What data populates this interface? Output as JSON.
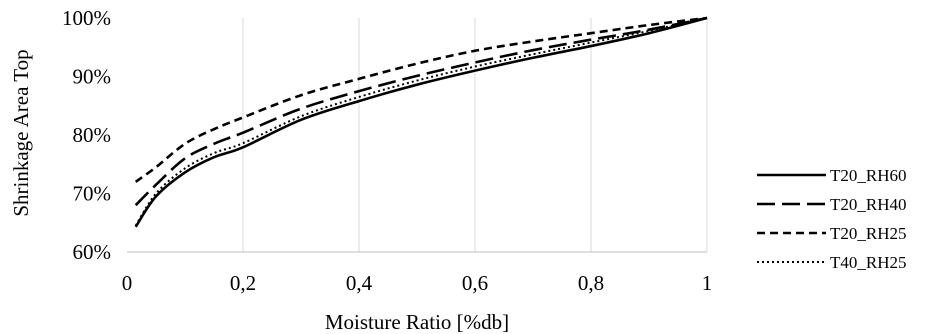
{
  "chart_data": {
    "type": "line",
    "title": "",
    "xlabel": "Moisture Ratio [%db]",
    "ylabel": "Shrinkage Area Top",
    "xlim": [
      0,
      1
    ],
    "ylim": [
      0.6,
      1.0
    ],
    "x_ticks": [
      {
        "value": 0,
        "label": "0"
      },
      {
        "value": 0.2,
        "label": "0,2"
      },
      {
        "value": 0.4,
        "label": "0,4"
      },
      {
        "value": 0.6,
        "label": "0,6"
      },
      {
        "value": 0.8,
        "label": "0,8"
      },
      {
        "value": 1,
        "label": "1"
      }
    ],
    "y_ticks": [
      {
        "value": 0.6,
        "label": "60%"
      },
      {
        "value": 0.7,
        "label": "70%"
      },
      {
        "value": 0.8,
        "label": "80%"
      },
      {
        "value": 0.9,
        "label": "90%"
      },
      {
        "value": 1.0,
        "label": "100%"
      }
    ],
    "grid": {
      "vertical": true,
      "horizontal": false
    },
    "legend_position": "right",
    "series": [
      {
        "name": "T20_RH60",
        "style": "solid",
        "color": "#000000",
        "x": [
          0.015,
          0.05,
          0.1,
          0.15,
          0.2,
          0.3,
          0.4,
          0.5,
          0.6,
          0.7,
          0.8,
          0.9,
          1.0
        ],
        "y": [
          0.643,
          0.695,
          0.736,
          0.762,
          0.779,
          0.826,
          0.858,
          0.886,
          0.91,
          0.932,
          0.952,
          0.974,
          1.0
        ]
      },
      {
        "name": "T20_RH40",
        "style": "longdash",
        "color": "#000000",
        "x": [
          0.015,
          0.05,
          0.1,
          0.15,
          0.2,
          0.3,
          0.4,
          0.5,
          0.6,
          0.7,
          0.8,
          0.9,
          1.0
        ],
        "y": [
          0.68,
          0.715,
          0.76,
          0.785,
          0.804,
          0.845,
          0.875,
          0.901,
          0.924,
          0.945,
          0.963,
          0.98,
          1.0
        ]
      },
      {
        "name": "T20_RH25",
        "style": "shortdash",
        "color": "#000000",
        "x": [
          0.015,
          0.05,
          0.1,
          0.15,
          0.2,
          0.3,
          0.4,
          0.5,
          0.6,
          0.7,
          0.8,
          0.9,
          1.0
        ],
        "y": [
          0.72,
          0.745,
          0.785,
          0.81,
          0.83,
          0.868,
          0.896,
          0.922,
          0.944,
          0.96,
          0.974,
          0.988,
          1.0
        ]
      },
      {
        "name": "T40_RH25",
        "style": "dotted",
        "color": "#000000",
        "x": [
          0.015,
          0.05,
          0.1,
          0.15,
          0.2,
          0.3,
          0.4,
          0.5,
          0.6,
          0.7,
          0.8,
          0.9,
          1.0
        ],
        "y": [
          0.645,
          0.7,
          0.743,
          0.769,
          0.786,
          0.832,
          0.865,
          0.893,
          0.917,
          0.938,
          0.958,
          0.978,
          1.0
        ]
      }
    ]
  }
}
